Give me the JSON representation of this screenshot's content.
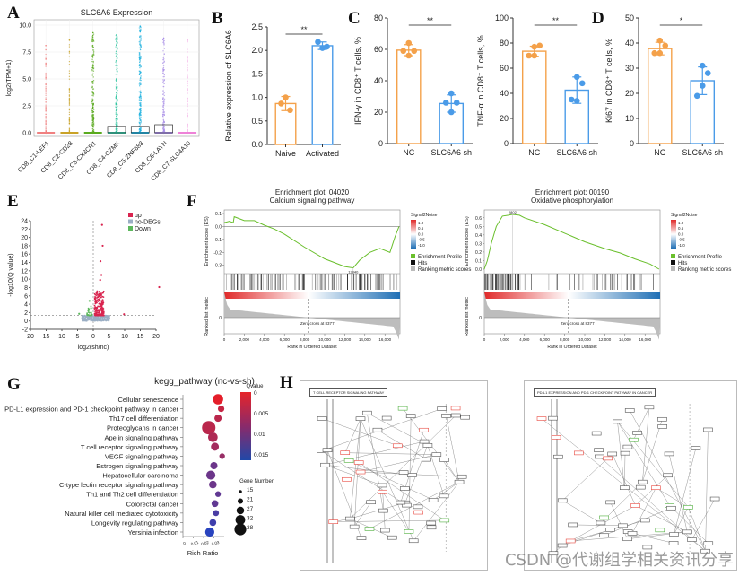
{
  "watermark": "CSDN @代谢组学相关资讯分享",
  "panel_labels": {
    "A": "A",
    "B": "B",
    "C": "C",
    "D": "D",
    "E": "E",
    "F": "F",
    "G": "G",
    "H": "H"
  },
  "colors": {
    "orange": "#f4a14a",
    "blue": "#4a9be8",
    "up": "#d9244f",
    "nodeg": "#9aaec4",
    "down": "#5cb85c",
    "gsea_green": "#6abf2c"
  },
  "chart_data": [
    {
      "id": "A",
      "type": "scatter",
      "title": "SLC6A6 Expression",
      "xlabel": "",
      "ylabel": "log2(TPM+1)",
      "ylim": [
        0,
        10
      ],
      "yticks": [
        "0.0",
        "2.5",
        "5.0",
        "7.5",
        "10.0"
      ],
      "categories": [
        "CD8_C1-LEF1",
        "CD8_C2-CD28",
        "CD8_C3-CX3CR1",
        "CD8_C4-GZMK",
        "CD8_C5-ZNF683",
        "CD8_C6-LAYN",
        "CD8_C7-SLC4A10"
      ],
      "category_colors": [
        "#f08080",
        "#c9a227",
        "#5aaa1e",
        "#2ec4a0",
        "#1ab0e0",
        "#a98ee8",
        "#ee82d8"
      ],
      "max_values": [
        8.1,
        8.6,
        9.3,
        9.1,
        9.9,
        8.8,
        8.6
      ],
      "box_q3": [
        0,
        0,
        0,
        0.6,
        0.6,
        0.75,
        0
      ],
      "density": [
        0.3,
        0.2,
        0.9,
        0.9,
        1.0,
        0.6,
        0.2
      ]
    },
    {
      "id": "B",
      "type": "bar",
      "title": "",
      "ylabel": "Relative expression of SLC6A6",
      "ylim": [
        0,
        2.5
      ],
      "yticks": [
        "0.0",
        "0.5",
        "1.0",
        "1.5",
        "2.0",
        "2.5"
      ],
      "categories": [
        "Naive",
        "Activated"
      ],
      "values": [
        0.87,
        2.1
      ],
      "errors": [
        0.15,
        0.08
      ],
      "points": [
        [
          1.0,
          0.87,
          0.73
        ],
        [
          2.05,
          2.18,
          2.08
        ]
      ],
      "significance": "**"
    },
    {
      "id": "C1",
      "type": "bar",
      "ylabel": "IFN-γ in CD8⁺ T cells, %",
      "ylim": [
        0,
        80
      ],
      "yticks": [
        "0",
        "20",
        "40",
        "60",
        "80"
      ],
      "categories": [
        "NC",
        "SLC6A6 sh"
      ],
      "values": [
        59.5,
        25.5
      ],
      "errors": [
        3.5,
        5.5
      ],
      "points": [
        [
          64,
          59,
          56,
          59
        ],
        [
          32,
          26,
          20,
          26
        ]
      ],
      "significance": "**"
    },
    {
      "id": "C2",
      "type": "bar",
      "ylabel": "TNF-α in CD8⁺ T cells, %",
      "ylim": [
        0,
        100
      ],
      "yticks": [
        "0",
        "20",
        "40",
        "60",
        "80",
        "100"
      ],
      "categories": [
        "NC",
        "SLC6A6 sh"
      ],
      "values": [
        73.5,
        42.5
      ],
      "errors": [
        4,
        10.5
      ],
      "points": [
        [
          77,
          78,
          70,
          70
        ],
        [
          53,
          48,
          34,
          35
        ]
      ],
      "significance": "**"
    },
    {
      "id": "D",
      "type": "bar",
      "ylabel": "Ki67 in CD8⁺ T cells, %",
      "ylim": [
        0,
        50
      ],
      "yticks": [
        "0",
        "10",
        "20",
        "30",
        "40",
        "50"
      ],
      "categories": [
        "NC",
        "SLC6A6 sh"
      ],
      "values": [
        37.8,
        25
      ],
      "errors": [
        2.5,
        5.5
      ],
      "points": [
        [
          41,
          39,
          36,
          36
        ],
        [
          31,
          28,
          23,
          19
        ]
      ],
      "significance": "*"
    },
    {
      "id": "E",
      "type": "scatter",
      "xlabel": "log2(sh/nc)",
      "ylabel": "-log10(Q value)",
      "xlim": [
        -20,
        20
      ],
      "ylim": [
        -2,
        24
      ],
      "xticks": [
        "20",
        "15",
        "10",
        "5",
        "0",
        "5",
        "10",
        "15",
        "20"
      ],
      "yticks": [
        "-2",
        "0",
        "2",
        "4",
        "6",
        "8",
        "10",
        "12",
        "14",
        "16",
        "18",
        "20",
        "22",
        "24"
      ],
      "legend": [
        "up",
        "no-DEGs",
        "Down"
      ],
      "threshold_y": 1.3,
      "notable_up": [
        [
          2.8,
          23
        ],
        [
          3,
          18
        ],
        [
          2.3,
          14.3
        ],
        [
          2.6,
          11
        ],
        [
          2.2,
          9.8
        ],
        [
          21,
          8.1
        ],
        [
          9.8,
          1.6
        ]
      ],
      "notable_down": [
        [
          -1.2,
          4.8
        ],
        [
          -4.5,
          1.7
        ]
      ]
    },
    {
      "id": "F1",
      "type": "line",
      "title": "Enrichment plot: 04020",
      "subtitle": "Calcium signaling pathway",
      "xlabel": "Rank in Ordered Dataset",
      "ylabel": "Enrichment score (ES)",
      "ylabel2": "Ranked list metric",
      "xlim": [
        0,
        17500
      ],
      "ylim": [
        -0.33,
        0.1
      ],
      "xticks": [
        "0",
        "2,000",
        "4,000",
        "6,000",
        "8,000",
        "10,000",
        "12,000",
        "14,000",
        "16,000"
      ],
      "yticks": [
        "0.1",
        "0.0",
        "-0.1",
        "-0.2",
        "-0.3"
      ],
      "peak_label": "12840",
      "zero_cross": "Zero cross at 8377",
      "x": [
        0,
        500,
        900,
        1000,
        2000,
        3000,
        4000,
        5000,
        6000,
        8000,
        10000,
        12000,
        12840,
        13500,
        14500,
        15500,
        16500,
        17000,
        17400
      ],
      "y": [
        0.03,
        0.04,
        0.03,
        0.075,
        0.045,
        0.045,
        0.01,
        -0.02,
        -0.06,
        -0.16,
        -0.25,
        -0.31,
        -0.32,
        -0.26,
        -0.2,
        -0.17,
        -0.2,
        -0.08,
        0.0
      ],
      "legend_title": "Signal2Noise",
      "colorbar_ticks": [
        "1.0",
        "0.5",
        "0.0",
        "-0.5",
        "-1.0"
      ],
      "legend": [
        "Enrichment Profile",
        "Hits",
        "Ranking metric scores"
      ]
    },
    {
      "id": "F2",
      "type": "line",
      "title": "Enrichment plot: 00190",
      "subtitle": "Oxidative phosphorylation",
      "xlabel": "Rank in Ordered Dataset",
      "ylabel": "Enrichment score (ES)",
      "ylabel2": "Ranked list metric",
      "xlim": [
        0,
        17500
      ],
      "ylim": [
        0,
        0.65
      ],
      "xticks": [
        "0",
        "2,000",
        "4,000",
        "6,000",
        "8,000",
        "10,000",
        "12,000",
        "14,000",
        "16,000"
      ],
      "yticks": [
        "0.6",
        "0.5",
        "0.4",
        "0.3",
        "0.2",
        "0.1",
        "0.0"
      ],
      "peak_label": "2802",
      "zero_cross": "Zero cross at 8377",
      "x": [
        0,
        300,
        700,
        1200,
        1800,
        2400,
        2800,
        3500,
        4000,
        6000,
        8000,
        10000,
        12000,
        13500,
        15000,
        16500,
        17400
      ],
      "y": [
        0,
        0.1,
        0.3,
        0.5,
        0.62,
        0.63,
        0.64,
        0.63,
        0.6,
        0.52,
        0.42,
        0.32,
        0.24,
        0.19,
        0.12,
        0.06,
        0.0
      ],
      "legend_title": "Signal2Noise",
      "colorbar_ticks": [
        "1.0",
        "0.5",
        "0.0",
        "-0.5",
        "-1.0"
      ],
      "legend": [
        "Enrichment Profile",
        "Hits",
        "Ranking metric scores"
      ]
    },
    {
      "id": "G",
      "type": "scatter",
      "title": "kegg_pathway (nc-vs-sh)",
      "xlabel": "Rich Ratio",
      "xticks": [
        "0",
        "0.01",
        "0.02",
        "0.03"
      ],
      "xlim": [
        0,
        0.04
      ],
      "categories": [
        "Cellular senescence",
        "PD-L1 expression and PD-1 checkpoint pathway in cancer",
        "Th17 cell differentiation",
        "Proteoglycans in cancer",
        "Apelin signaling pathway",
        "T cell receptor signaling pathway",
        "VEGF signaling pathway",
        "Estrogen signaling pathway",
        "Hepatocellular carcinoma",
        "C-type lectin receptor signaling pathway",
        "Th1 and Th2 cell differentiation",
        "Colorectal cancer",
        "Natural killer cell mediated cytotoxicity",
        "Longevity regulating pathway",
        "Yersinia infection"
      ],
      "rich_ratio": [
        0.034,
        0.037,
        0.034,
        0.025,
        0.029,
        0.031,
        0.038,
        0.03,
        0.027,
        0.029,
        0.034,
        0.031,
        0.032,
        0.029,
        0.026
      ],
      "qvalue": [
        0.0002,
        0.003,
        0.004,
        0.004,
        0.005,
        0.006,
        0.007,
        0.011,
        0.011,
        0.011,
        0.012,
        0.012,
        0.014,
        0.015,
        0.017
      ],
      "gene_number": [
        30,
        20,
        22,
        38,
        28,
        24,
        18,
        22,
        27,
        23,
        18,
        21,
        19,
        21,
        27
      ],
      "colorbar_title": "Qvalue",
      "colorbar_ticks": [
        "0",
        "0.005",
        "0.01",
        "0.015"
      ],
      "size_title": "Gene Number",
      "size_ticks": [
        "15",
        "21",
        "27",
        "32",
        "38"
      ]
    }
  ],
  "panel_H": {
    "left_title": "T CELL RECEPTOR SIGNALING PATHWAY",
    "right_title": "PD-L1 EXPRESSION AND PD-1 CHECKPOINT PATHWAY IN CANCER"
  }
}
